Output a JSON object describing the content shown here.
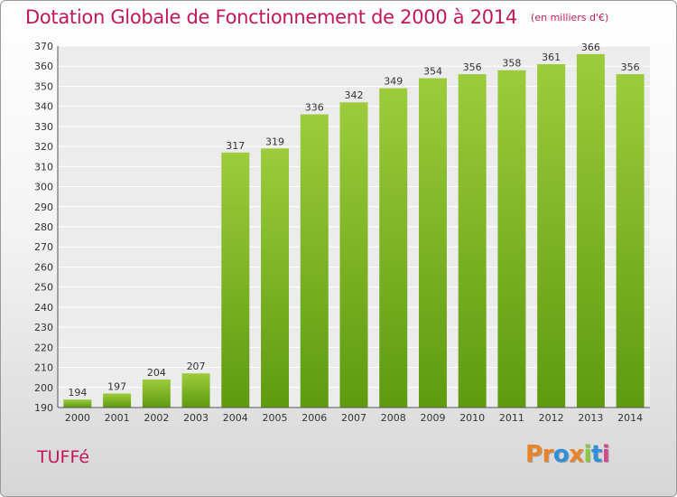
{
  "title": "Dotation Globale de Fonctionnement de 2000 à 2014",
  "subtitle": "(en milliers d'€)",
  "commune": "TUFFé",
  "logo_text": "Proxiti",
  "colors": {
    "title": "#c2185b",
    "bar_light": "#9ccc3c",
    "bar_dark": "#5e9a0f",
    "logo": [
      "#e8832a",
      "#e8832a",
      "#2f8fd8",
      "#e8832a",
      "#8dc63f",
      "#2f8fd8",
      "#d64a8a"
    ]
  },
  "chart_data": {
    "type": "bar",
    "categories": [
      "2000",
      "2001",
      "2002",
      "2003",
      "2004",
      "2005",
      "2006",
      "2007",
      "2008",
      "2009",
      "2010",
      "2011",
      "2012",
      "2013",
      "2014"
    ],
    "values": [
      194,
      197,
      204,
      207,
      317,
      319,
      336,
      342,
      349,
      354,
      356,
      358,
      361,
      366,
      356
    ],
    "ylim": [
      190,
      370
    ],
    "yticks": [
      190,
      200,
      210,
      220,
      230,
      240,
      250,
      260,
      270,
      280,
      290,
      300,
      310,
      320,
      330,
      340,
      350,
      360,
      370
    ],
    "grid": true,
    "data_labels": true
  }
}
